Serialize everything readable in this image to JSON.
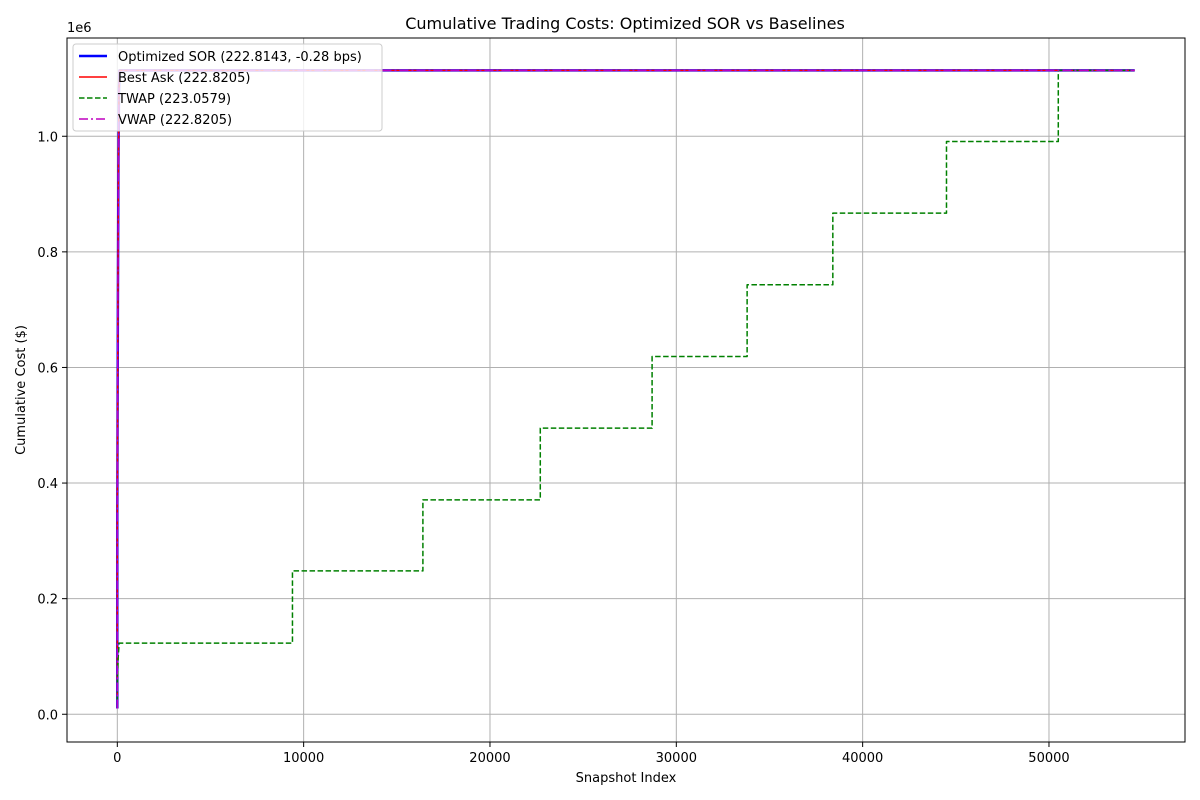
{
  "chart_data": {
    "type": "line",
    "title": "Cumulative Trading Costs: Optimized SOR vs Baselines",
    "xlabel": "Snapshot Index",
    "ylabel": "Cumulative Cost ($)",
    "y_offset_label": "1e6",
    "xlim": [
      -2700,
      57300
    ],
    "ylim": [
      -0.048,
      1.17
    ],
    "y_scale_multiplier": 1000000,
    "grid": true,
    "legend_position": "upper-left",
    "x_ticks": [
      0,
      10000,
      20000,
      30000,
      40000,
      50000
    ],
    "x_tick_labels": [
      "0",
      "10000",
      "20000",
      "30000",
      "40000",
      "50000"
    ],
    "y_ticks": [
      0.0,
      0.2,
      0.4,
      0.6,
      0.8,
      1.0
    ],
    "y_tick_labels": [
      "0.0",
      "0.2",
      "0.4",
      "0.6",
      "0.8",
      "1.0"
    ],
    "series": [
      {
        "name": "Optimized SOR (222.8143, -0.28 bps)",
        "color": "#0000ff",
        "style": "solid",
        "x": [
          0,
          0,
          30,
          60,
          90,
          120,
          54600
        ],
        "y": [
          0.01,
          0.35,
          0.7,
          0.95,
          1.08,
          1.114,
          1.114
        ]
      },
      {
        "name": "Best Ask (222.8205)",
        "color": "#ff0000",
        "style": "solid",
        "x": [
          0,
          0,
          30,
          60,
          90,
          120,
          54600
        ],
        "y": [
          0.01,
          0.35,
          0.7,
          0.95,
          1.08,
          1.114,
          1.114
        ]
      },
      {
        "name": "TWAP (223.0579)",
        "color": "#008000",
        "style": "dashed",
        "x": [
          0,
          0,
          50,
          100,
          9400,
          9400,
          16400,
          16400,
          22700,
          22700,
          28700,
          28700,
          33800,
          33800,
          38400,
          38400,
          44500,
          44500,
          50500,
          50500,
          54600
        ],
        "y": [
          0.01,
          0.05,
          0.1,
          0.123,
          0.123,
          0.248,
          0.248,
          0.371,
          0.371,
          0.495,
          0.495,
          0.619,
          0.619,
          0.743,
          0.743,
          0.867,
          0.867,
          0.991,
          0.991,
          1.114,
          1.114
        ]
      },
      {
        "name": "VWAP (222.8205)",
        "color": "#bf00bf",
        "style": "dashdot",
        "x": [
          0,
          0,
          30,
          60,
          90,
          120,
          54600
        ],
        "y": [
          0.01,
          0.35,
          0.7,
          0.95,
          1.08,
          1.114,
          1.114
        ]
      }
    ]
  }
}
